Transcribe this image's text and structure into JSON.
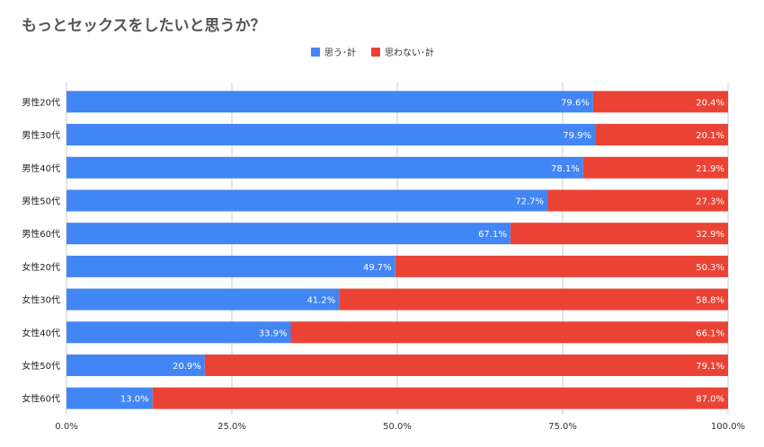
{
  "chart_data": {
    "type": "bar",
    "orientation": "horizontal",
    "stacked": true,
    "title": "もっとセックスをしたいと思うか？",
    "categories": [
      "男性20代",
      "男性30代",
      "男性40代",
      "男性50代",
      "男性60代",
      "女性20代",
      "女性30代",
      "女性40代",
      "女性50代",
      "女性60代"
    ],
    "series": [
      {
        "name": "思う･計",
        "color": "#4285f4",
        "values": [
          79.6,
          79.9,
          78.1,
          72.7,
          67.1,
          49.7,
          41.2,
          33.9,
          20.9,
          13.0
        ]
      },
      {
        "name": "思わない･計",
        "color": "#ea4335",
        "values": [
          20.4,
          20.1,
          21.9,
          27.3,
          32.9,
          50.3,
          58.8,
          66.1,
          79.1,
          87.0
        ]
      }
    ],
    "xlim": [
      0,
      100
    ],
    "xticks": [
      "0.0%",
      "25.0%",
      "50.0%",
      "75.0%",
      "100.0%"
    ],
    "xtick_values": [
      0,
      25,
      50,
      75,
      100
    ],
    "grid": true,
    "legend_position": "top-center",
    "gridline_color": "#cccccc"
  }
}
